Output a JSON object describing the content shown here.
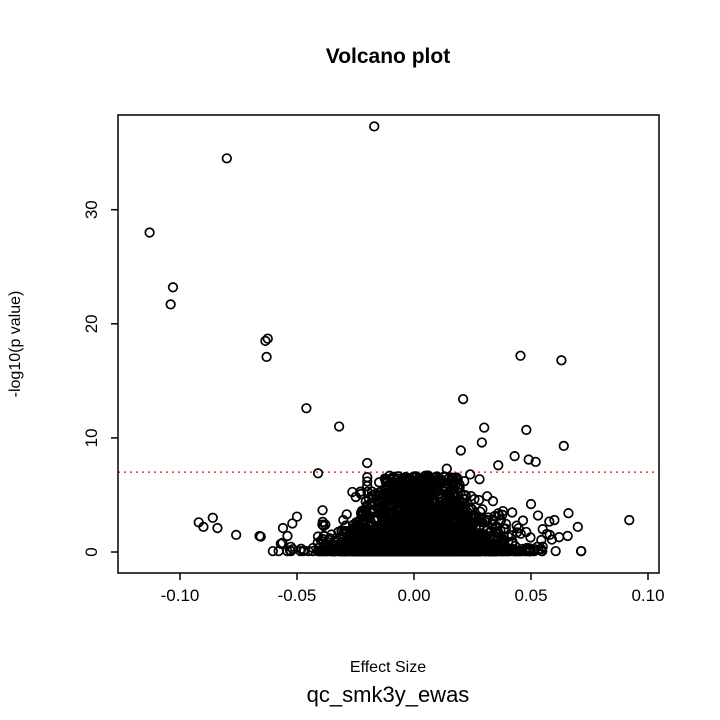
{
  "chart_data": {
    "type": "scatter",
    "title": "Volcano plot",
    "xlabel": "Effect Size",
    "ylabel": "-log10(p value)",
    "sublabel": "qc_smk3y_ewas",
    "xlim": [
      -0.1265,
      0.1047
    ],
    "ylim": [
      -1.84,
      38.3
    ],
    "x_ticks": [
      -0.1,
      -0.05,
      0.0,
      0.05,
      0.1
    ],
    "x_tick_labels": [
      "-0.10",
      "-0.05",
      "0.00",
      "0.05",
      "0.10"
    ],
    "y_ticks": [
      0,
      10,
      20,
      30
    ],
    "y_tick_labels": [
      "0",
      "10",
      "20",
      "30"
    ],
    "grid": false,
    "legend": "none",
    "marker": {
      "shape": "open-circle",
      "color": "#000000",
      "radius_px": 4.3
    },
    "threshold_line": {
      "y": 7.0,
      "color": "#FF0000",
      "style": "dotted"
    },
    "significant_points": [
      [
        -0.017,
        37.3
      ],
      [
        -0.08,
        34.5
      ],
      [
        -0.113,
        28.0
      ],
      [
        -0.103,
        23.2
      ],
      [
        -0.104,
        21.7
      ],
      [
        -0.0625,
        18.7
      ],
      [
        -0.0635,
        18.5
      ],
      [
        -0.063,
        17.1
      ],
      [
        0.0455,
        17.2
      ],
      [
        0.063,
        16.8
      ],
      [
        0.021,
        13.4
      ],
      [
        -0.046,
        12.6
      ],
      [
        -0.032,
        11.0
      ],
      [
        0.03,
        10.9
      ],
      [
        0.048,
        10.7
      ],
      [
        0.029,
        9.6
      ],
      [
        0.064,
        9.3
      ],
      [
        0.02,
        8.9
      ],
      [
        0.043,
        8.4
      ],
      [
        0.049,
        8.1
      ],
      [
        0.052,
        7.9
      ],
      [
        -0.02,
        7.8
      ],
      [
        0.036,
        7.6
      ],
      [
        0.014,
        7.3
      ],
      [
        -0.041,
        6.9
      ],
      [
        0.024,
        6.8
      ],
      [
        0.006,
        6.7
      ]
    ],
    "flank_points": [
      [
        -0.092,
        2.6
      ],
      [
        -0.09,
        2.2
      ],
      [
        -0.086,
        3.0
      ],
      [
        -0.084,
        2.1
      ],
      [
        -0.076,
        1.5
      ],
      [
        -0.066,
        1.4
      ],
      [
        -0.0655,
        1.35
      ],
      [
        -0.056,
        2.1
      ],
      [
        -0.052,
        2.5
      ],
      [
        -0.05,
        3.1
      ],
      [
        0.05,
        4.2
      ],
      [
        0.053,
        3.2
      ],
      [
        0.055,
        2.0
      ],
      [
        0.058,
        1.5
      ],
      [
        0.06,
        2.8
      ],
      [
        0.062,
        1.3
      ],
      [
        0.066,
        3.4
      ],
      [
        0.07,
        2.2
      ],
      [
        0.092,
        2.8
      ]
    ],
    "dense_cloud": {
      "description": "dense mass of open-circle points centered at effect size 0 below the significance line",
      "count": 3000,
      "seed": 7,
      "x_center": 0.0,
      "x_sigma_base": 0.019,
      "x_sigma_top": 0.008,
      "right_stretch": 1.12,
      "y_min": 0.08,
      "y_max": 6.7,
      "y_power": 3.2
    }
  }
}
